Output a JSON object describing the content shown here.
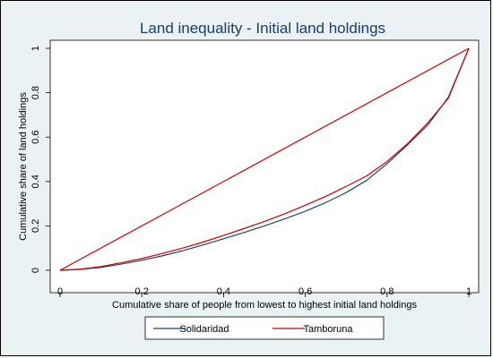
{
  "chart_data": {
    "type": "line",
    "title": "Land inequality - Initial land holdings",
    "xlabel": "Cumulative share of people from lowest to highest initial land holdings",
    "ylabel": "Cumulative share of land holdings",
    "xlim": [
      0,
      1
    ],
    "ylim": [
      0,
      1
    ],
    "xticks": [
      "0",
      "0.2",
      "0.4",
      "0.6",
      "0.8",
      "1"
    ],
    "yticks": [
      "0",
      "0.2",
      "0.4",
      "0.6",
      "0.8",
      "1"
    ],
    "grid": false,
    "legend_position": "bottom",
    "equality_line": {
      "x": [
        0,
        1
      ],
      "y": [
        0,
        1
      ],
      "color": "#cc0000"
    },
    "series": [
      {
        "name": "Solidaridad",
        "color": "#1a476f",
        "x": [
          0,
          0.05,
          0.1,
          0.15,
          0.2,
          0.25,
          0.3,
          0.35,
          0.4,
          0.45,
          0.5,
          0.55,
          0.6,
          0.65,
          0.7,
          0.75,
          0.8,
          0.85,
          0.9,
          0.95,
          1.0
        ],
        "y": [
          0,
          0.004,
          0.013,
          0.028,
          0.045,
          0.065,
          0.088,
          0.114,
          0.142,
          0.17,
          0.2,
          0.232,
          0.266,
          0.305,
          0.35,
          0.405,
          0.48,
          0.565,
          0.655,
          0.78,
          1.0
        ]
      },
      {
        "name": "Tamboruna",
        "color": "#cc0000",
        "x": [
          0,
          0.05,
          0.1,
          0.15,
          0.2,
          0.25,
          0.3,
          0.35,
          0.4,
          0.45,
          0.5,
          0.55,
          0.6,
          0.65,
          0.7,
          0.75,
          0.8,
          0.85,
          0.9,
          0.95,
          1.0
        ],
        "y": [
          0,
          0.005,
          0.017,
          0.034,
          0.053,
          0.076,
          0.1,
          0.127,
          0.157,
          0.188,
          0.22,
          0.255,
          0.293,
          0.333,
          0.378,
          0.425,
          0.49,
          0.57,
          0.665,
          0.775,
          1.0
        ]
      }
    ]
  }
}
